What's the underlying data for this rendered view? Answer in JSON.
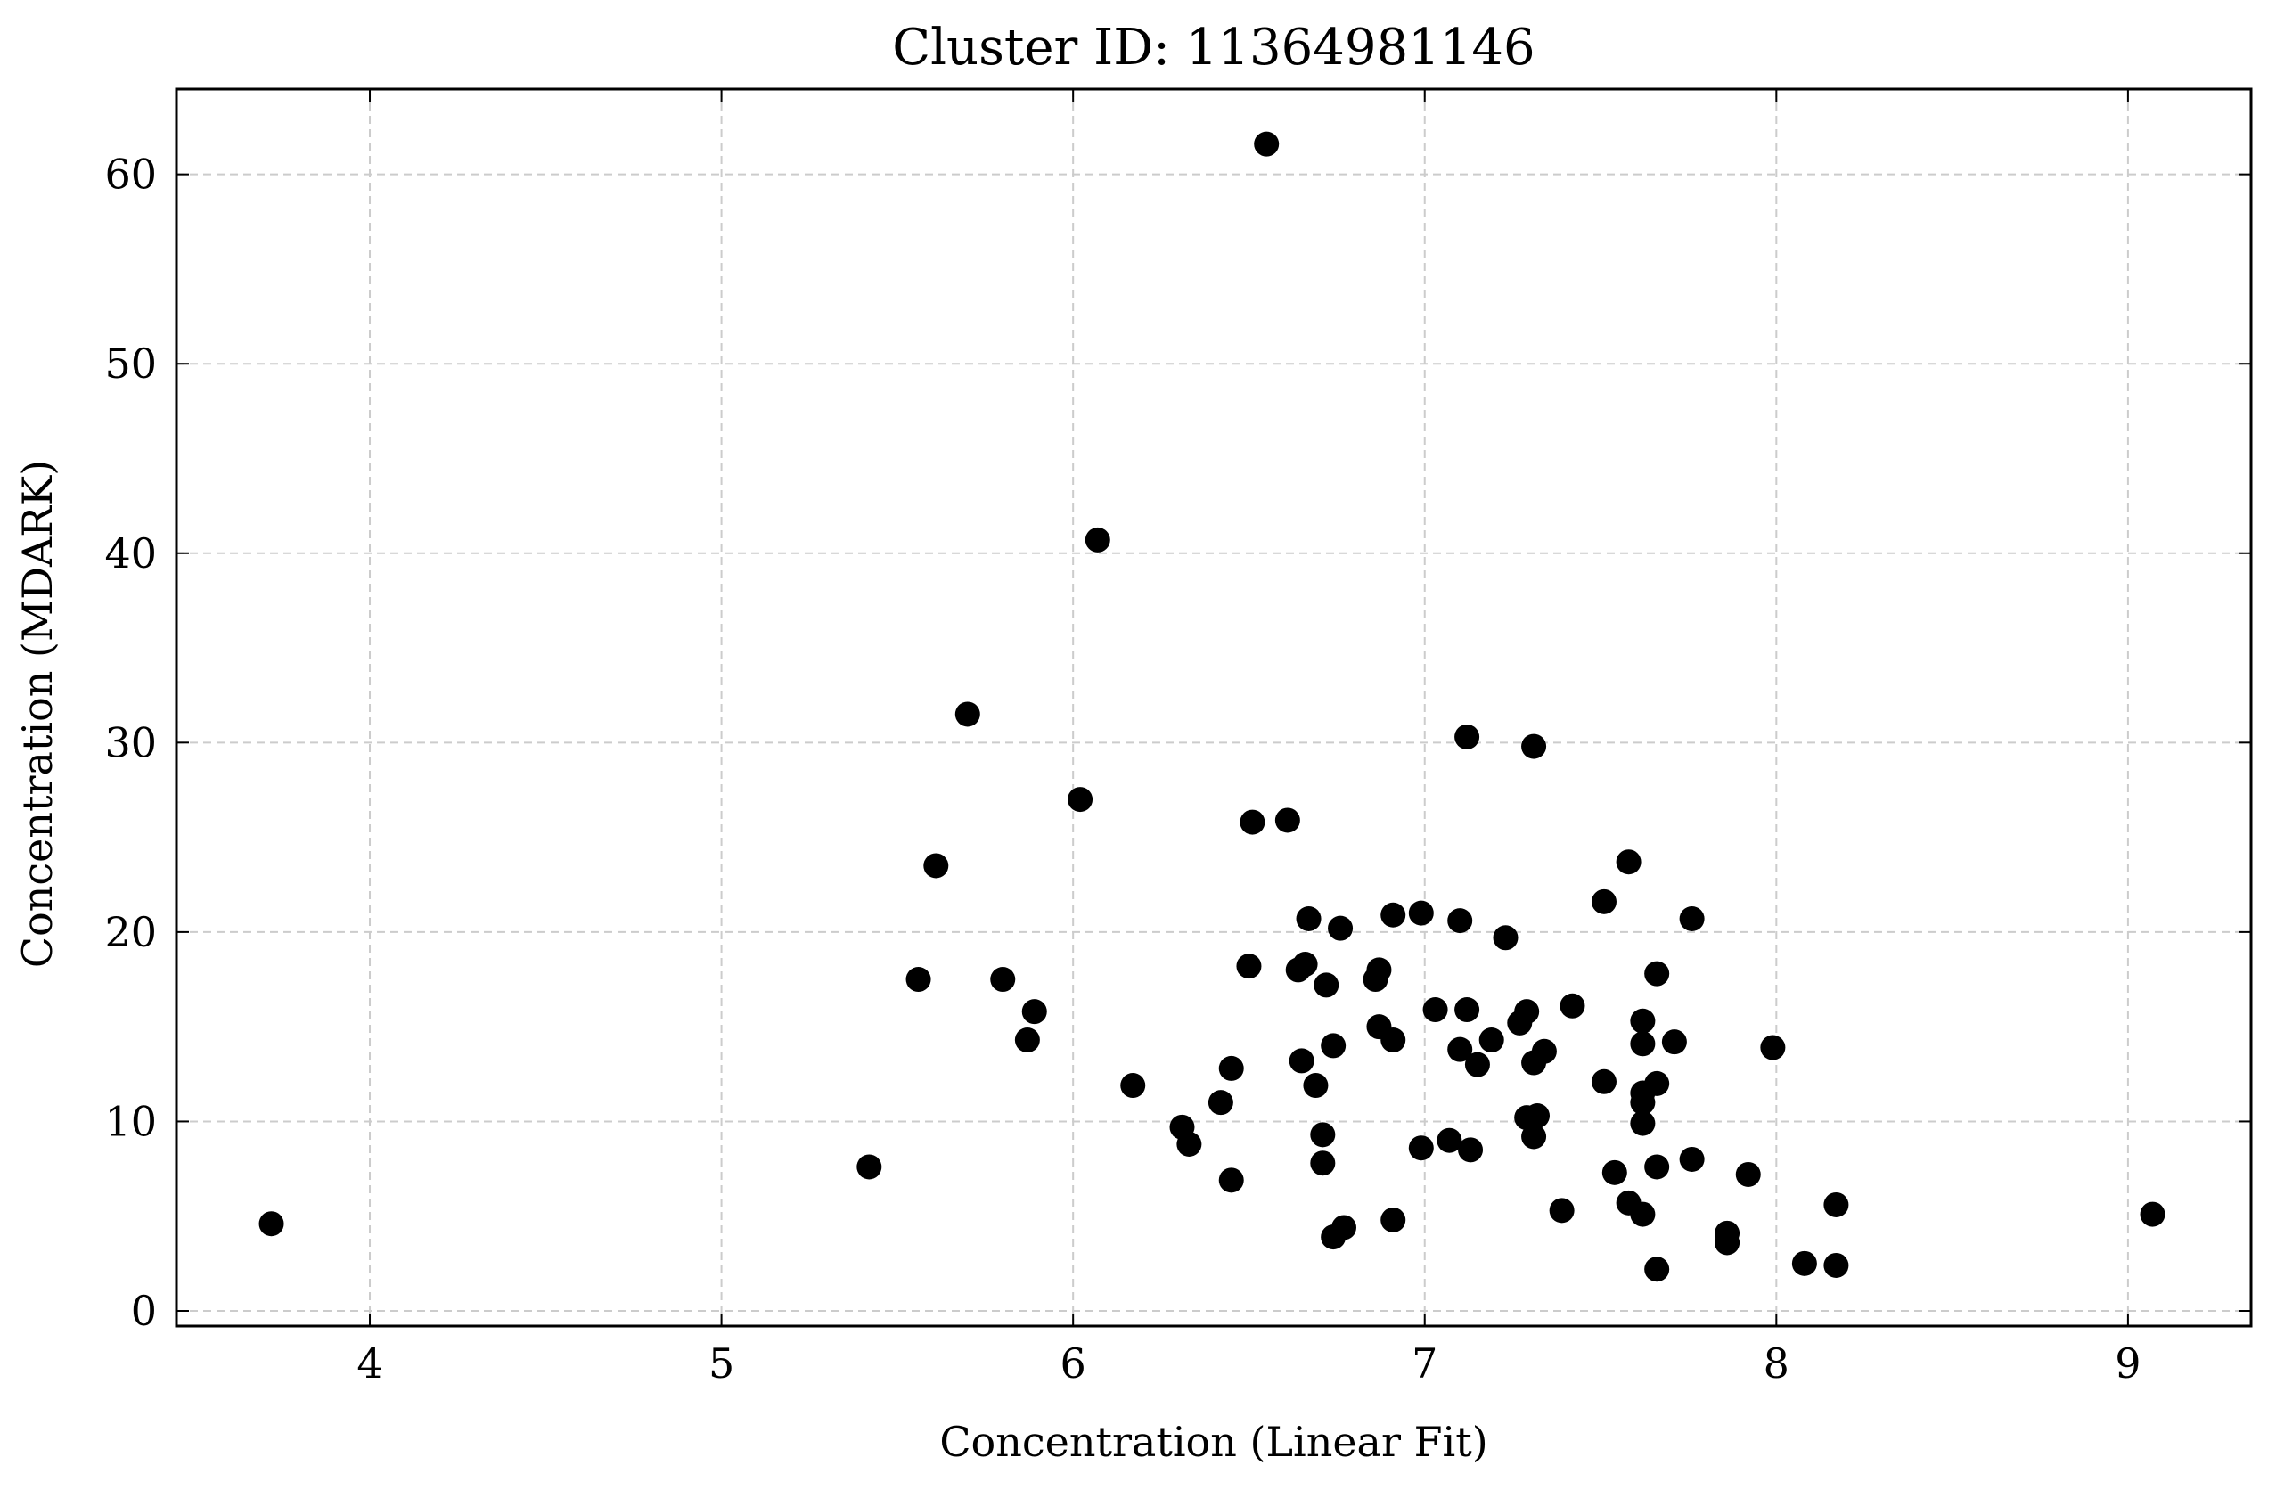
{
  "chart_data": {
    "type": "scatter",
    "title": "Cluster ID: 11364981146",
    "xlabel": "Concentration (Linear Fit)",
    "ylabel": "Concentration (MDARK)",
    "xlim": [
      3.45,
      9.35
    ],
    "ylim": [
      -0.8,
      64.5
    ],
    "xticks": [
      4,
      5,
      6,
      7,
      8,
      9
    ],
    "yticks": [
      0,
      10,
      20,
      30,
      40,
      50,
      60
    ],
    "grid": true,
    "marker_color": "#000000",
    "points": [
      [
        3.72,
        4.6
      ],
      [
        5.42,
        7.6
      ],
      [
        5.56,
        17.5
      ],
      [
        5.61,
        23.5
      ],
      [
        5.7,
        31.5
      ],
      [
        5.8,
        17.5
      ],
      [
        5.87,
        14.3
      ],
      [
        5.89,
        15.8
      ],
      [
        6.02,
        27.0
      ],
      [
        6.07,
        40.7
      ],
      [
        6.17,
        11.9
      ],
      [
        6.31,
        9.7
      ],
      [
        6.33,
        8.8
      ],
      [
        6.42,
        11.0
      ],
      [
        6.45,
        12.8
      ],
      [
        6.45,
        6.9
      ],
      [
        6.5,
        18.2
      ],
      [
        6.51,
        25.8
      ],
      [
        6.55,
        61.6
      ],
      [
        6.61,
        25.9
      ],
      [
        6.64,
        18.0
      ],
      [
        6.65,
        13.2
      ],
      [
        6.66,
        18.3
      ],
      [
        6.67,
        20.7
      ],
      [
        6.69,
        11.9
      ],
      [
        6.71,
        9.3
      ],
      [
        6.71,
        7.8
      ],
      [
        6.72,
        17.2
      ],
      [
        6.74,
        14.0
      ],
      [
        6.74,
        3.9
      ],
      [
        6.76,
        20.2
      ],
      [
        6.77,
        4.4
      ],
      [
        6.86,
        17.5
      ],
      [
        6.87,
        18.0
      ],
      [
        6.87,
        15.0
      ],
      [
        6.91,
        20.9
      ],
      [
        6.91,
        14.3
      ],
      [
        6.91,
        4.8
      ],
      [
        6.99,
        21.0
      ],
      [
        6.99,
        8.6
      ],
      [
        7.03,
        15.9
      ],
      [
        7.07,
        9.0
      ],
      [
        7.1,
        20.6
      ],
      [
        7.1,
        13.8
      ],
      [
        7.12,
        15.9
      ],
      [
        7.12,
        30.3
      ],
      [
        7.13,
        8.5
      ],
      [
        7.15,
        13.0
      ],
      [
        7.19,
        14.3
      ],
      [
        7.23,
        19.7
      ],
      [
        7.27,
        15.2
      ],
      [
        7.29,
        15.8
      ],
      [
        7.29,
        10.2
      ],
      [
        7.31,
        29.8
      ],
      [
        7.31,
        13.1
      ],
      [
        7.31,
        9.2
      ],
      [
        7.32,
        10.3
      ],
      [
        7.34,
        13.7
      ],
      [
        7.39,
        5.3
      ],
      [
        7.42,
        16.1
      ],
      [
        7.51,
        21.6
      ],
      [
        7.51,
        12.1
      ],
      [
        7.54,
        7.3
      ],
      [
        7.58,
        23.7
      ],
      [
        7.58,
        5.7
      ],
      [
        7.62,
        15.3
      ],
      [
        7.62,
        14.1
      ],
      [
        7.62,
        11.5
      ],
      [
        7.62,
        11.0
      ],
      [
        7.62,
        9.9
      ],
      [
        7.62,
        5.1
      ],
      [
        7.66,
        17.8
      ],
      [
        7.66,
        12.0
      ],
      [
        7.66,
        7.6
      ],
      [
        7.66,
        2.2
      ],
      [
        7.71,
        14.2
      ],
      [
        7.76,
        20.7
      ],
      [
        7.76,
        8.0
      ],
      [
        7.86,
        4.1
      ],
      [
        7.86,
        3.6
      ],
      [
        7.92,
        7.2
      ],
      [
        7.99,
        13.9
      ],
      [
        8.08,
        2.5
      ],
      [
        8.17,
        5.6
      ],
      [
        8.17,
        2.4
      ],
      [
        9.07,
        5.1
      ]
    ]
  }
}
